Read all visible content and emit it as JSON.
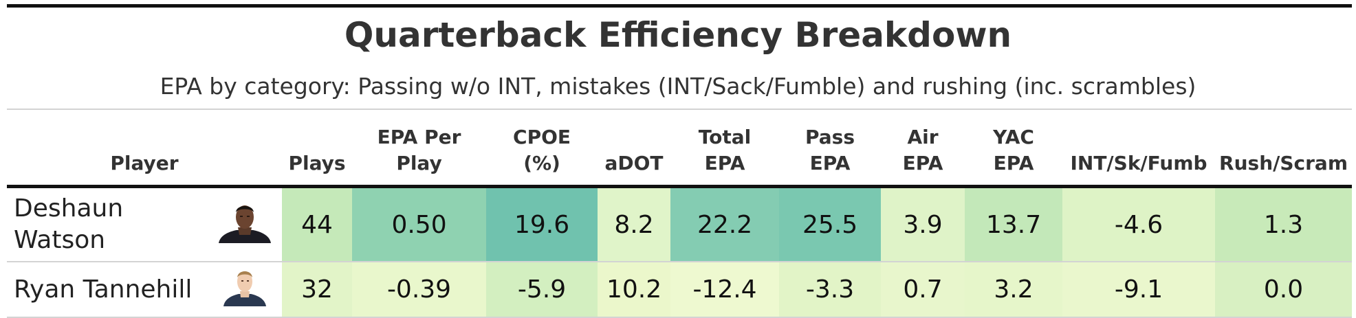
{
  "title": "Quarterback Efficiency Breakdown",
  "subtitle": "EPA by category: Passing w/o INT, mistakes (INT/Sack/Fumble) and rushing (inc. scrambles)",
  "columns": {
    "player": "Player",
    "plays": "Plays",
    "epa_per_play": [
      "EPA Per",
      "Play"
    ],
    "cpoe": [
      "CPOE",
      "(%)"
    ],
    "adot": "aDOT",
    "total_epa": [
      "Total",
      "EPA"
    ],
    "pass_epa": [
      "Pass",
      "EPA"
    ],
    "air_epa": [
      "Air",
      "EPA"
    ],
    "yac_epa": [
      "YAC",
      "EPA"
    ],
    "int_sk_fumb": "INT/Sk/Fumb",
    "rush_scram": "Rush/Scram"
  },
  "rows": [
    {
      "player": [
        "Deshaun",
        "Watson"
      ],
      "headshot_icon": "player-headshot-watson",
      "plays": "44",
      "epa_per_play": "0.50",
      "cpoe": "19.6",
      "adot": "8.2",
      "total_epa": "22.2",
      "pass_epa": "25.5",
      "air_epa": "3.9",
      "yac_epa": "13.7",
      "int_sk_fumb": "-4.6",
      "rush_scram": "1.3"
    },
    {
      "player": [
        "Ryan Tannehill"
      ],
      "headshot_icon": "player-headshot-tannehill",
      "plays": "32",
      "epa_per_play": "-0.39",
      "cpoe": "-5.9",
      "adot": "10.2",
      "total_epa": "-12.4",
      "pass_epa": "-3.3",
      "air_epa": "0.7",
      "yac_epa": "3.2",
      "int_sk_fumb": "-9.1",
      "rush_scram": "0.0"
    }
  ],
  "colors": {
    "r1": [
      "#c5e9b9",
      "#8fd2b1",
      "#70c2ae",
      "#e0f4c9",
      "#84ccb2",
      "#7ac8b0",
      "#dff3c8",
      "#c3e8b9",
      "#def3c6",
      "#c8eab9"
    ],
    "r2": [
      "#e2f4c8",
      "#e9f7cc",
      "#d3efc0",
      "#ebf7cb",
      "#eef9d0",
      "#e2f4c7",
      "#e8f6cc",
      "#e6f6ca",
      "#eaf7cd",
      "#d8f0c2"
    ]
  },
  "chart_data": {
    "type": "table",
    "title": "Quarterback Efficiency Breakdown",
    "subtitle": "EPA by category: Passing w/o INT, mistakes (INT/Sack/Fumble) and rushing (inc. scrambles)",
    "columns": [
      "Player",
      "Plays",
      "EPA Per Play",
      "CPOE (%)",
      "aDOT",
      "Total EPA",
      "Pass EPA",
      "Air EPA",
      "YAC EPA",
      "INT/Sk/Fumb",
      "Rush/Scram"
    ],
    "rows": [
      [
        "Deshaun Watson",
        44,
        0.5,
        19.6,
        8.2,
        22.2,
        25.5,
        3.9,
        13.7,
        -4.6,
        1.3
      ],
      [
        "Ryan Tannehill",
        32,
        -0.39,
        -5.9,
        10.2,
        -12.4,
        -3.3,
        0.7,
        3.2,
        -9.1,
        0.0
      ]
    ]
  }
}
